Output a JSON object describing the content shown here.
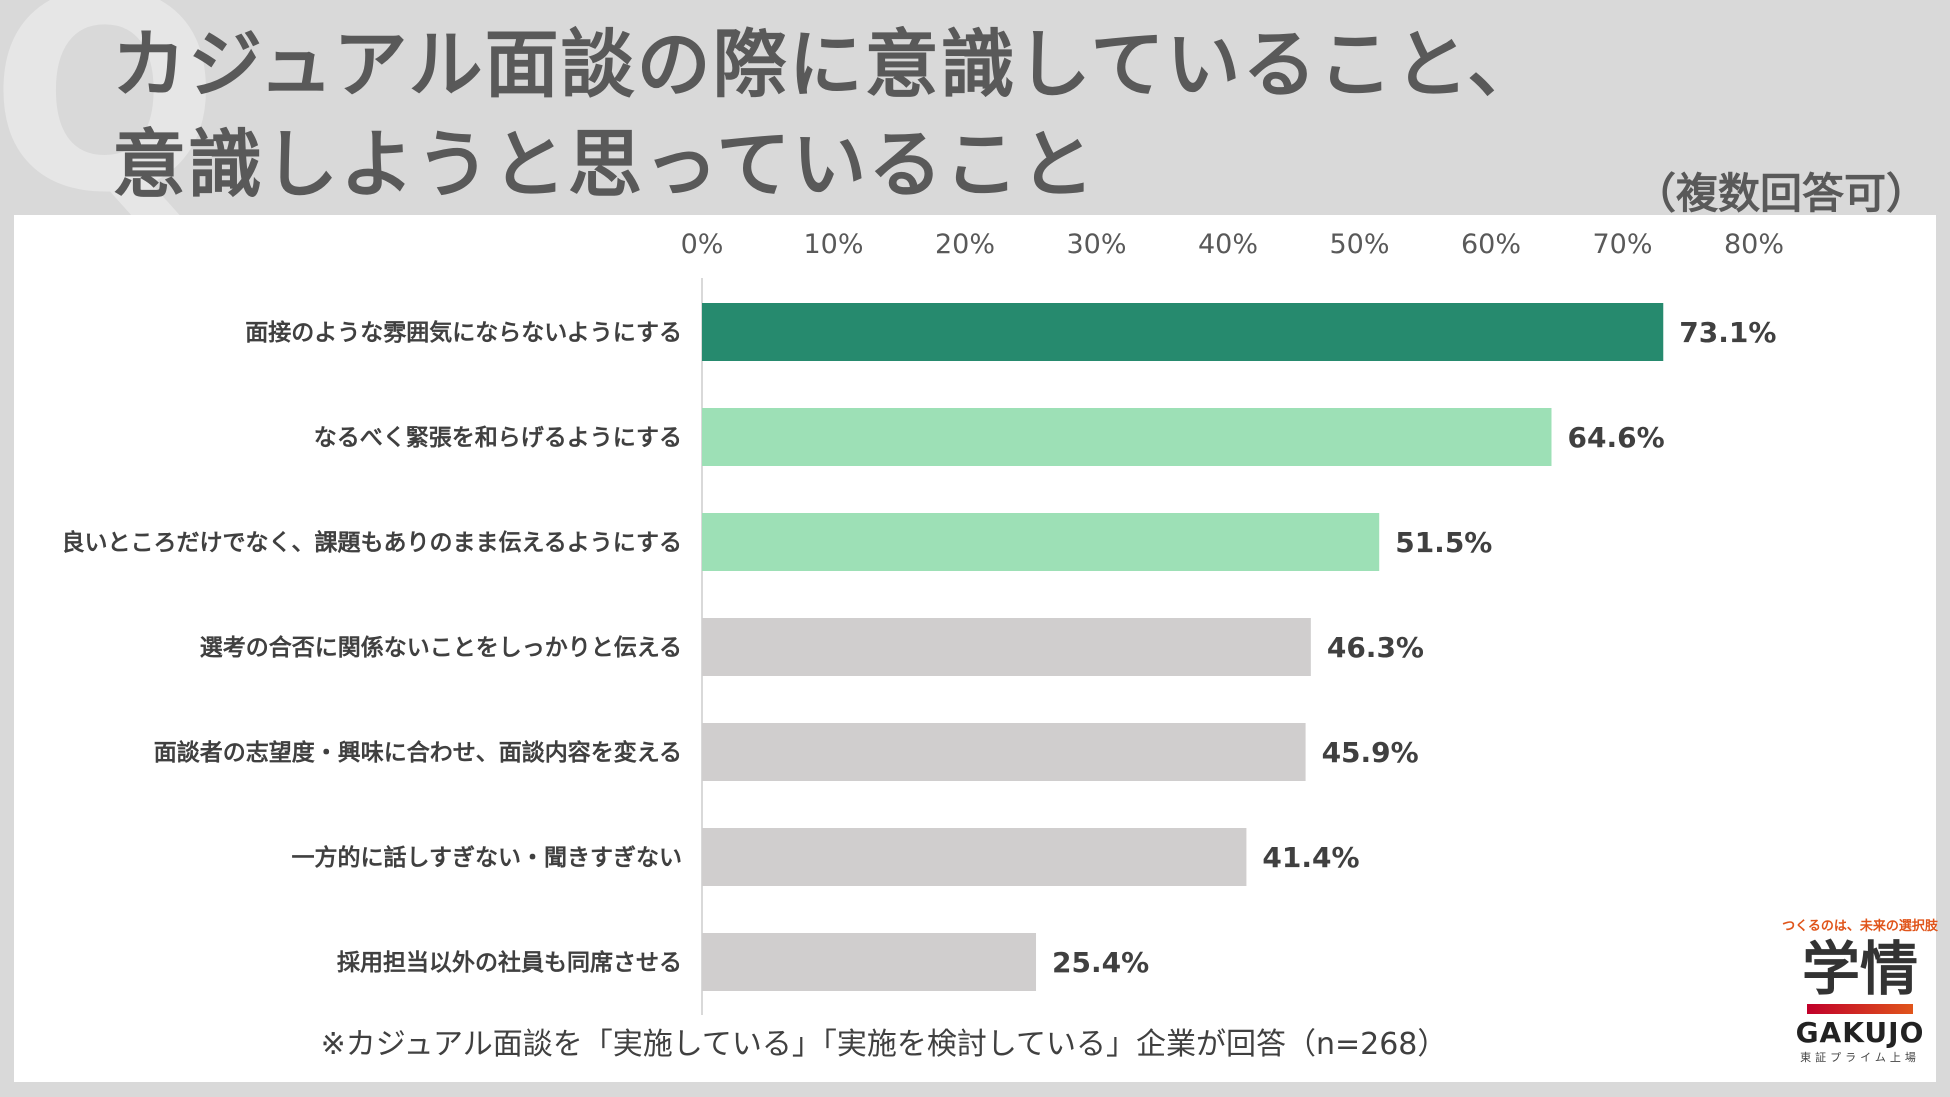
{
  "bg_letter": "Q",
  "title_line1": "カジュアル面談の際に意識していること、",
  "title_line2": "意識しようと思っていること",
  "multiple_note": "（複数回答可）",
  "footnote": "※カジュアル面談を「実施している」「実施を検討している」企業が回答（n=268）",
  "logo": {
    "tagline": "つくるのは、未来の選択肢",
    "mark": "学情",
    "name": "GAKUJO",
    "sub": "東証プライム上場"
  },
  "colors": {
    "top": "#268a6e",
    "mid": "#9de0b6",
    "rest": "#d0cece"
  },
  "chart_data": {
    "type": "bar",
    "orientation": "horizontal",
    "categories": [
      "面接のような雰囲気にならないようにする",
      "なるべく緊張を和らげるようにする",
      "良いところだけでなく、課題もありのまま伝えるようにする",
      "選考の合否に関係ないことをしっかりと伝える",
      "面談者の志望度・興味に合わせ、面談内容を変える",
      "一方的に話しすぎない・聞きすぎない",
      "採用担当以外の社員も同席させる"
    ],
    "values": [
      73.1,
      64.6,
      51.5,
      46.3,
      45.9,
      41.4,
      25.4
    ],
    "value_labels": [
      "73.1%",
      "64.6%",
      "51.5%",
      "46.3%",
      "45.9%",
      "41.4%",
      "25.4%"
    ],
    "bar_colors": [
      "#268a6e",
      "#9de0b6",
      "#9de0b6",
      "#d0cece",
      "#d0cece",
      "#d0cece",
      "#d0cece"
    ],
    "xlim": [
      0,
      80
    ],
    "xticks": [
      0,
      10,
      20,
      30,
      40,
      50,
      60,
      70,
      80
    ],
    "xtick_labels": [
      "0%",
      "10%",
      "20%",
      "30%",
      "40%",
      "50%",
      "60%",
      "70%",
      "80%"
    ],
    "axis_position": "top"
  }
}
